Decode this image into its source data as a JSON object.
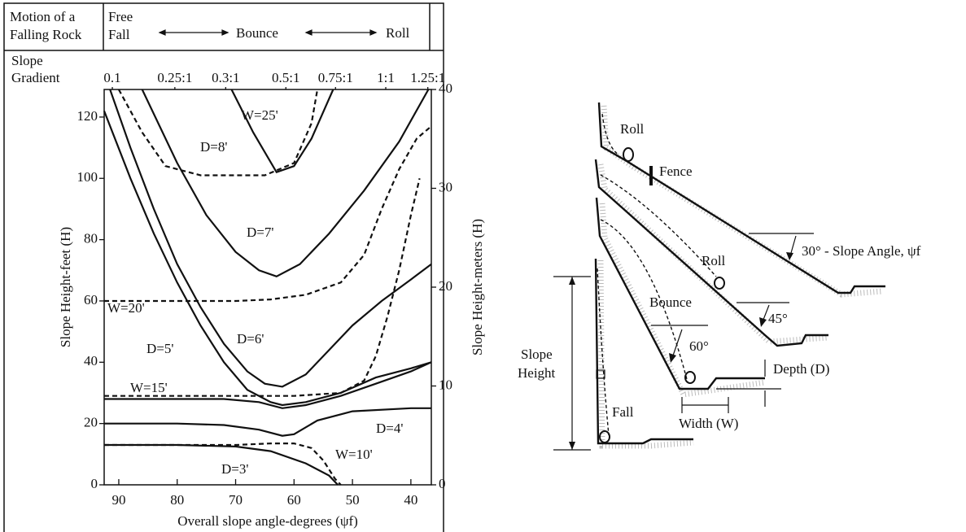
{
  "header": {
    "motion_label": [
      "Motion of a",
      "Falling Rock"
    ],
    "zones": [
      "Free",
      "Fall",
      "Bounce",
      "Roll"
    ],
    "gradient_label": [
      "Slope",
      "Gradient"
    ]
  },
  "chart_data": {
    "type": "line",
    "xlabel": "Overall slope angle-degrees (ψf)",
    "ylabel": "Slope Height-feet (H)",
    "y2label": "Slope Height-meters (H)",
    "xlim": [
      92.5,
      36.5
    ],
    "xticks": [
      90,
      80,
      70,
      60,
      50,
      40
    ],
    "x2ticks": [
      {
        "value": 91.1,
        "label": "0.1"
      },
      {
        "value": 80.4,
        "label": "0.25:1"
      },
      {
        "value": 71.7,
        "label": "0.3:1"
      },
      {
        "value": 61.4,
        "label": "0.5:1"
      },
      {
        "value": 52.9,
        "label": "0.75:1"
      },
      {
        "value": 44.3,
        "label": "1:1"
      },
      {
        "value": 37.1,
        "label": "1.25:1"
      }
    ],
    "ylim": [
      0,
      129
    ],
    "yticks": [
      0,
      20,
      40,
      60,
      80,
      100,
      120
    ],
    "y2lim": [
      0,
      40
    ],
    "y2ticks": [
      0,
      10,
      20,
      30,
      40
    ],
    "series": [
      {
        "name": "W=25'",
        "color": "#111",
        "dashed": true,
        "x": [
          90,
          86,
          82,
          76,
          65,
          60,
          57,
          56
        ],
        "values": [
          129,
          115,
          104,
          101,
          101,
          105,
          118,
          129
        ]
      },
      {
        "name": "D=8'",
        "color": "#111",
        "dashed": false,
        "x": [
          70.7,
          67,
          63,
          60,
          57,
          53.3
        ],
        "values": [
          129,
          115,
          102,
          104,
          113,
          129
        ]
      },
      {
        "name": "D=7'",
        "color": "#111",
        "dashed": false,
        "x": [
          86,
          80,
          75,
          70,
          66,
          63,
          59,
          54,
          48,
          42,
          37
        ],
        "values": [
          129,
          105,
          88,
          76,
          70,
          68,
          72,
          82,
          96,
          112,
          129
        ]
      },
      {
        "name": "W=20'",
        "color": "#111",
        "dashed": true,
        "x": [
          92.5,
          80,
          70,
          64,
          58,
          52,
          48,
          45,
          42,
          39,
          36.5
        ],
        "values": [
          60,
          60,
          60,
          60.5,
          62,
          66,
          75,
          90,
          103,
          113,
          117
        ]
      },
      {
        "name": "D=6'",
        "color": "#111",
        "dashed": false,
        "x": [
          91.5,
          88,
          84,
          80,
          76,
          72,
          68,
          65,
          62,
          58,
          54,
          50,
          45,
          40,
          36.5
        ],
        "values": [
          129,
          110,
          90,
          72,
          58,
          46,
          37,
          33,
          32,
          36,
          44,
          52,
          60,
          67,
          72
        ]
      },
      {
        "name": "D=5'",
        "color": "#111",
        "dashed": false,
        "x": [
          92.5,
          88,
          84,
          80,
          76,
          72,
          68,
          64,
          62,
          58,
          52,
          46,
          40,
          36.5
        ],
        "values": [
          122,
          100,
          82,
          66,
          52,
          40,
          31,
          27,
          26,
          27,
          30,
          35,
          38,
          40
        ]
      },
      {
        "name": "W=15'",
        "color": "#111",
        "dashed": true,
        "x": [
          92.5,
          80,
          70,
          60,
          52,
          48,
          46,
          44,
          42,
          40,
          38.5
        ],
        "values": [
          29,
          29,
          29,
          29,
          30,
          34,
          42,
          55,
          70,
          88,
          100
        ]
      },
      {
        "name": "D=4'",
        "color": "#111",
        "dashed": false,
        "x": [
          92.5,
          80,
          72,
          66,
          62,
          60,
          56,
          50,
          40,
          36.5
        ],
        "values": [
          20,
          20,
          19.5,
          18,
          16,
          16.5,
          21,
          24,
          25,
          25
        ]
      },
      {
        "name": "D=3'",
        "color": "#111",
        "dashed": false,
        "x": [
          92.5,
          80,
          70,
          64,
          58,
          54,
          52.5
        ],
        "values": [
          13,
          13,
          12.5,
          11,
          7,
          3,
          0
        ]
      },
      {
        "name": "W=10'",
        "color": "#111",
        "dashed": true,
        "x": [
          92.5,
          80,
          70,
          64,
          60,
          57,
          55,
          53,
          52
        ],
        "values": [
          13,
          13,
          13,
          13.5,
          13.5,
          12,
          8,
          2,
          0
        ]
      },
      {
        "color": "#111",
        "dashed": false,
        "x": [
          92.5,
          80,
          72,
          66,
          62,
          58,
          52,
          46,
          40,
          36.5
        ],
        "values": [
          28,
          28,
          28,
          27,
          25,
          26,
          29,
          33,
          37,
          40
        ]
      }
    ]
  },
  "diagram": {
    "labels": [
      "Roll",
      "Fence",
      "30° - Slope Angle, ψf",
      "Roll",
      "45°",
      "Bounce",
      "60°",
      "Slope",
      "Height",
      "Depth (D)",
      "Fall",
      "Width (W)"
    ]
  }
}
